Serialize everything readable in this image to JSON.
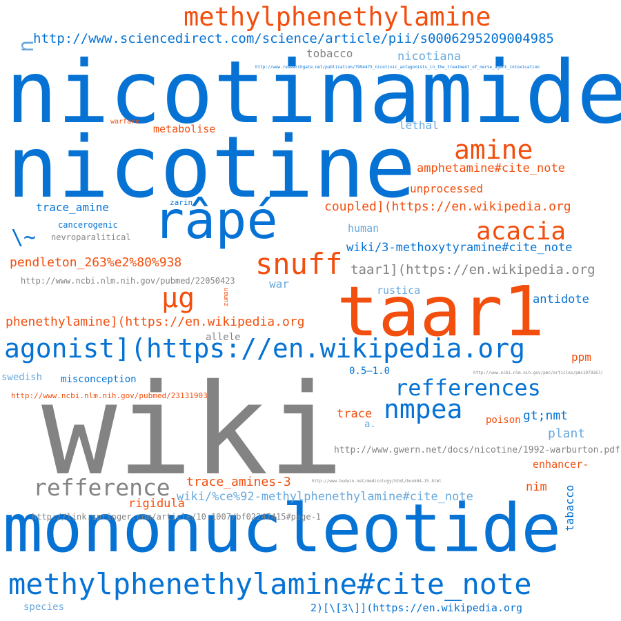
{
  "palette": {
    "blue": "#0572d4",
    "orange": "#f24e0d",
    "gray": "#838383",
    "light_blue": "#69a8dc"
  },
  "words": {
    "wiki": "wiki",
    "nicotinamide": "nicotinamide",
    "nicotine": "nicotine",
    "mononucleotide": "mononucleotide",
    "taar1": "taar1",
    "rape": "râpé",
    "methylphenethylamine": "methylphenethylamine",
    "methylphenethylamine_cite_note": "methylphenethylamine#cite_note",
    "agonist_link": "agonist](https://en.wikipedia.org",
    "sciencedirect_url": "http://www.sciencedirect.com/science/article/pii/s0006295209004985",
    "snuff": "snuff",
    "amine": "amine",
    "acacia": "acacia",
    "ug": "µg",
    "refferences": "refferences",
    "refference": "refference",
    "nmpea": "nmpea",
    "tobacco": "tobacco",
    "nicotiana": "nicotiana",
    "lethal": "lethal",
    "warfare": "warfare",
    "metabolise": "metabolise",
    "amphetamine_cite_note": "amphetamine#cite_note",
    "unprocessed": "unprocessed",
    "coupled_link": "coupled](https://en.wikipedia.org",
    "trace_amine": "trace_amine",
    "zarin": "zarin",
    "cancerogenic": "cancerogenic",
    "nevroparalitical": "nevroparalitical",
    "backslash_tilde": "\\~",
    "human": "human",
    "methoxytyramine_cite_note": "wiki/3-methoxytyramine#cite_note",
    "pendleton": "pendleton_263%e2%80%938",
    "taar1_link": "taar1](https://en.wikipedia.org",
    "ncbi_22050423": "http://www.ncbi.nlm.nih.gov/pubmed/22050423",
    "war": "war",
    "rustica": "rustica",
    "antidote": "antidote",
    "phenethylamine_link": "phenethylamine](https://en.wikipedia.org",
    "allele": "allele",
    "ppm": "ppm",
    "swedish": "swedish",
    "range": "0.5–1.0",
    "misconception": "misconception",
    "ncbi_23131903": "http://www.ncbi.nlm.nih.gov/pubmed/23131903",
    "trace": "trace",
    "a_dot": "a.",
    "gt_nmt": "gt;nmt",
    "poison": "poison",
    "plant": "plant",
    "gwern_url": "http://www.gwern.net/docs/nicotine/1992-warburton.pdf",
    "trace_amines_3": "trace_amines-3",
    "enhancer": "enhancer-",
    "wiki_beta_cite_note": "wiki/%ce%92-methylphenethylamine#cite_note",
    "nim": "nim",
    "rigidula": "rigidula",
    "springer_url": "http://link.springer.com/article/10.1007/bf02247415#page-1",
    "tabacco": "tabacco",
    "species": "species",
    "ref_2_3_link": "2)[\\[3\\]](https://en.wikipedia.org",
    "n_char": "n",
    "zuman": "zuman",
    "researchgate_url": "http://www.researchgate.net/publication/7994475_nicotinic_antagonists_in_the_treatment_of_nerve_agent_intoxication",
    "ncbi_pmc_url": "http://www.ncbi.nlm.nih.gov/pmc/articles/pmc1079267/",
    "budwin_url": "http://www.budwin.net/medicology/html/book04-15.html"
  }
}
